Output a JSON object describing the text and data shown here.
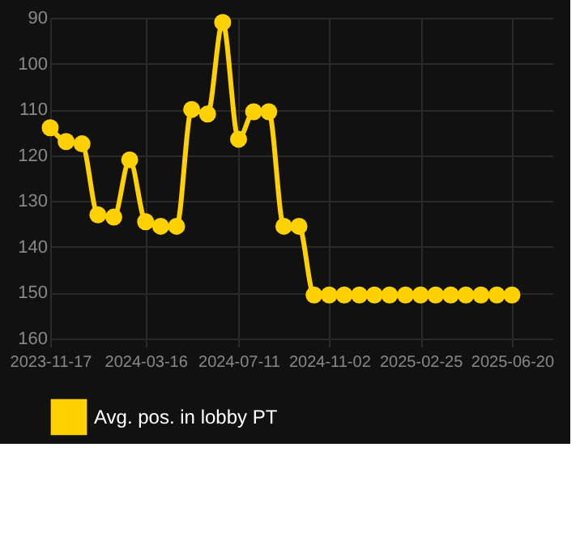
{
  "chart_data": {
    "type": "line",
    "x": [
      "2023-11-17",
      "2023-12-07",
      "2023-12-27",
      "2024-01-16",
      "2024-02-05",
      "2024-02-25",
      "2024-03-16",
      "2024-04-04",
      "2024-04-24",
      "2024-05-13",
      "2024-06-02",
      "2024-06-21",
      "2024-07-11",
      "2024-07-30",
      "2024-08-18",
      "2024-09-06",
      "2024-09-25",
      "2024-10-14",
      "2024-11-02",
      "2024-11-21",
      "2024-12-10",
      "2024-12-29",
      "2025-01-17",
      "2025-02-06",
      "2025-02-25",
      "2025-03-16",
      "2025-04-04",
      "2025-04-23",
      "2025-05-12",
      "2025-06-01",
      "2025-06-20"
    ],
    "series": [
      {
        "name": "Avg. pos. in lobby PT",
        "color": "#ffd100",
        "values": [
          114,
          117,
          117.5,
          133,
          133.5,
          121,
          134.5,
          135.5,
          135.5,
          110,
          111,
          91,
          116.5,
          110.5,
          110.5,
          135.5,
          135.5,
          150.5,
          150.5,
          150.5,
          150.5,
          150.5,
          150.5,
          150.5,
          150.5,
          150.5,
          150.5,
          150.5,
          150.5,
          150.5,
          150.5
        ]
      }
    ],
    "xlim": [
      "2023-11-17",
      "2025-08-10"
    ],
    "xticks": [
      "2023-11-17",
      "2024-03-16",
      "2024-07-11",
      "2024-11-02",
      "2025-02-25",
      "2025-06-20"
    ],
    "ylim": [
      160,
      90
    ],
    "yticks": [
      90,
      100,
      110,
      120,
      130,
      140,
      150,
      160
    ],
    "grid": true,
    "legend": "bottom",
    "marker": "circle",
    "line_style": "solid"
  }
}
